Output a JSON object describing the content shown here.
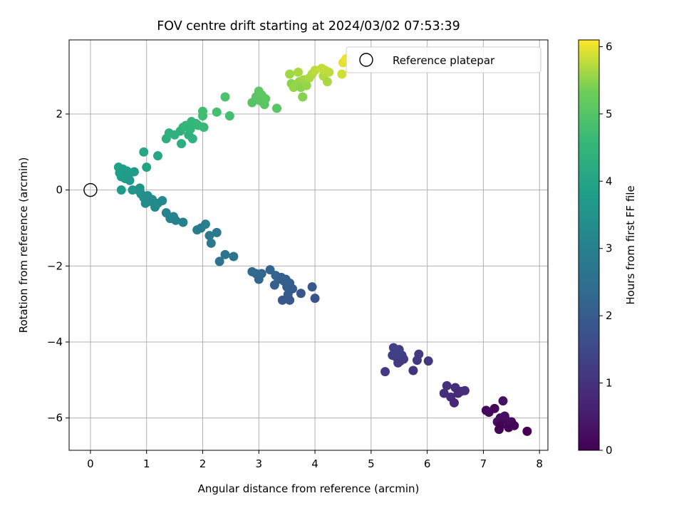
{
  "chart_data": {
    "type": "scatter",
    "title": "FOV centre drift starting at 2024/03/02 07:53:39",
    "xlabel": "Angular distance from reference (arcmin)",
    "ylabel": "Rotation from reference (arcmin)",
    "colorbar_label": "Hours from first FF file",
    "colormap": "viridis",
    "xlim": [
      -0.38,
      8.15
    ],
    "ylim": [
      -6.85,
      3.95
    ],
    "clim": [
      0,
      6.1
    ],
    "x_ticks": [
      0,
      1,
      2,
      3,
      4,
      5,
      6,
      7,
      8
    ],
    "y_ticks": [
      -6,
      -4,
      -2,
      0,
      2
    ],
    "colorbar_ticks": [
      0,
      1,
      2,
      3,
      4,
      5,
      6
    ],
    "grid": true,
    "legend": {
      "placement": "top-right",
      "entries": [
        "Reference platepar"
      ]
    },
    "reference_point": {
      "x": 0,
      "y": 0
    },
    "points": [
      {
        "x": 7.05,
        "y": -5.8,
        "h": 0.15
      },
      {
        "x": 7.1,
        "y": -5.85,
        "h": 0.2
      },
      {
        "x": 7.2,
        "y": -5.75,
        "h": 0.1
      },
      {
        "x": 7.25,
        "y": -6.1,
        "h": 0.25
      },
      {
        "x": 7.3,
        "y": -6.0,
        "h": 0.2
      },
      {
        "x": 7.35,
        "y": -5.55,
        "h": 0.3
      },
      {
        "x": 7.28,
        "y": -6.3,
        "h": 0.1
      },
      {
        "x": 7.4,
        "y": -6.05,
        "h": 0.15
      },
      {
        "x": 7.45,
        "y": -6.25,
        "h": 0.05
      },
      {
        "x": 7.5,
        "y": -6.1,
        "h": 0.2
      },
      {
        "x": 7.55,
        "y": -6.2,
        "h": 0.1
      },
      {
        "x": 7.3,
        "y": -6.2,
        "h": 0.05
      },
      {
        "x": 7.78,
        "y": -6.35,
        "h": 0.0
      },
      {
        "x": 7.38,
        "y": -5.95,
        "h": 0.3
      },
      {
        "x": 6.3,
        "y": -5.35,
        "h": 0.9
      },
      {
        "x": 6.35,
        "y": -5.15,
        "h": 0.95
      },
      {
        "x": 6.42,
        "y": -5.45,
        "h": 0.85
      },
      {
        "x": 6.5,
        "y": -5.2,
        "h": 0.9
      },
      {
        "x": 6.55,
        "y": -5.35,
        "h": 0.8
      },
      {
        "x": 6.48,
        "y": -5.6,
        "h": 0.75
      },
      {
        "x": 6.6,
        "y": -5.3,
        "h": 0.85
      },
      {
        "x": 6.67,
        "y": -5.28,
        "h": 0.9
      },
      {
        "x": 5.25,
        "y": -4.78,
        "h": 1.2
      },
      {
        "x": 5.4,
        "y": -4.15,
        "h": 1.35
      },
      {
        "x": 5.42,
        "y": -4.3,
        "h": 1.3
      },
      {
        "x": 5.45,
        "y": -4.4,
        "h": 1.25
      },
      {
        "x": 5.5,
        "y": -4.2,
        "h": 1.3
      },
      {
        "x": 5.52,
        "y": -4.5,
        "h": 1.2
      },
      {
        "x": 5.55,
        "y": -4.35,
        "h": 1.35
      },
      {
        "x": 5.58,
        "y": -4.45,
        "h": 1.25
      },
      {
        "x": 5.48,
        "y": -4.55,
        "h": 1.15
      },
      {
        "x": 5.75,
        "y": -4.75,
        "h": 1.05
      },
      {
        "x": 5.82,
        "y": -4.48,
        "h": 1.15
      },
      {
        "x": 5.85,
        "y": -4.32,
        "h": 1.2
      },
      {
        "x": 6.02,
        "y": -4.5,
        "h": 1.1
      },
      {
        "x": 5.38,
        "y": -4.35,
        "h": 1.3
      },
      {
        "x": 2.88,
        "y": -2.15,
        "h": 2.35
      },
      {
        "x": 2.95,
        "y": -2.2,
        "h": 2.3
      },
      {
        "x": 3.0,
        "y": -2.35,
        "h": 2.25
      },
      {
        "x": 3.05,
        "y": -2.2,
        "h": 2.3
      },
      {
        "x": 3.2,
        "y": -2.1,
        "h": 2.2
      },
      {
        "x": 3.28,
        "y": -2.5,
        "h": 2.1
      },
      {
        "x": 3.3,
        "y": -2.25,
        "h": 2.2
      },
      {
        "x": 3.35,
        "y": -2.35,
        "h": 2.15
      },
      {
        "x": 3.4,
        "y": -2.3,
        "h": 2.1
      },
      {
        "x": 3.45,
        "y": -2.4,
        "h": 2.05
      },
      {
        "x": 3.5,
        "y": -2.55,
        "h": 2.0
      },
      {
        "x": 3.55,
        "y": -2.45,
        "h": 2.05
      },
      {
        "x": 3.6,
        "y": -2.6,
        "h": 1.95
      },
      {
        "x": 3.42,
        "y": -2.9,
        "h": 1.9
      },
      {
        "x": 3.52,
        "y": -2.75,
        "h": 1.95
      },
      {
        "x": 3.55,
        "y": -2.9,
        "h": 1.9
      },
      {
        "x": 3.75,
        "y": -2.72,
        "h": 1.85
      },
      {
        "x": 3.95,
        "y": -2.55,
        "h": 1.9
      },
      {
        "x": 4.0,
        "y": -2.85,
        "h": 1.8
      },
      {
        "x": 3.48,
        "y": -2.35,
        "h": 2.1
      },
      {
        "x": 1.9,
        "y": -1.05,
        "h": 2.9
      },
      {
        "x": 1.97,
        "y": -1.0,
        "h": 2.85
      },
      {
        "x": 2.05,
        "y": -0.9,
        "h": 2.95
      },
      {
        "x": 2.12,
        "y": -1.2,
        "h": 2.8
      },
      {
        "x": 2.15,
        "y": -1.4,
        "h": 2.75
      },
      {
        "x": 2.25,
        "y": -1.12,
        "h": 2.8
      },
      {
        "x": 2.3,
        "y": -1.88,
        "h": 2.6
      },
      {
        "x": 2.4,
        "y": -1.7,
        "h": 2.65
      },
      {
        "x": 2.55,
        "y": -1.75,
        "h": 2.6
      },
      {
        "x": 1.35,
        "y": -0.6,
        "h": 3.1
      },
      {
        "x": 1.42,
        "y": -0.75,
        "h": 3.05
      },
      {
        "x": 1.48,
        "y": -0.7,
        "h": 3.1
      },
      {
        "x": 1.52,
        "y": -0.8,
        "h": 3.0
      },
      {
        "x": 1.65,
        "y": -0.85,
        "h": 3.0
      },
      {
        "x": 0.85,
        "y": 0.0,
        "h": 3.5
      },
      {
        "x": 0.9,
        "y": -0.1,
        "h": 3.45
      },
      {
        "x": 0.95,
        "y": -0.2,
        "h": 3.4
      },
      {
        "x": 0.98,
        "y": -0.35,
        "h": 3.35
      },
      {
        "x": 1.02,
        "y": -0.15,
        "h": 3.4
      },
      {
        "x": 1.05,
        "y": -0.3,
        "h": 3.35
      },
      {
        "x": 1.1,
        "y": -0.25,
        "h": 3.3
      },
      {
        "x": 1.15,
        "y": -0.45,
        "h": 3.25
      },
      {
        "x": 1.2,
        "y": -0.35,
        "h": 3.3
      },
      {
        "x": 1.28,
        "y": -0.28,
        "h": 3.25
      },
      {
        "x": 0.75,
        "y": 0.0,
        "h": 3.6
      },
      {
        "x": 0.88,
        "y": 0.05,
        "h": 3.5
      },
      {
        "x": 0.5,
        "y": 0.6,
        "h": 3.9
      },
      {
        "x": 0.52,
        "y": 0.45,
        "h": 3.85
      },
      {
        "x": 0.55,
        "y": 0.35,
        "h": 3.8
      },
      {
        "x": 0.58,
        "y": 0.55,
        "h": 3.85
      },
      {
        "x": 0.62,
        "y": 0.3,
        "h": 3.75
      },
      {
        "x": 0.65,
        "y": 0.5,
        "h": 3.8
      },
      {
        "x": 0.68,
        "y": 0.4,
        "h": 3.75
      },
      {
        "x": 0.7,
        "y": 0.25,
        "h": 3.7
      },
      {
        "x": 0.78,
        "y": 0.48,
        "h": 3.7
      },
      {
        "x": 0.55,
        "y": 0.0,
        "h": 3.7
      },
      {
        "x": 0.95,
        "y": 1.0,
        "h": 4.05
      },
      {
        "x": 1.0,
        "y": 0.6,
        "h": 3.95
      },
      {
        "x": 1.2,
        "y": 0.9,
        "h": 4.05
      },
      {
        "x": 1.35,
        "y": 1.35,
        "h": 4.3
      },
      {
        "x": 1.4,
        "y": 1.5,
        "h": 4.35
      },
      {
        "x": 1.5,
        "y": 1.45,
        "h": 4.35
      },
      {
        "x": 1.6,
        "y": 1.55,
        "h": 4.4
      },
      {
        "x": 1.62,
        "y": 1.22,
        "h": 4.3
      },
      {
        "x": 1.65,
        "y": 1.65,
        "h": 4.45
      },
      {
        "x": 1.7,
        "y": 1.7,
        "h": 4.5
      },
      {
        "x": 1.75,
        "y": 1.45,
        "h": 4.4
      },
      {
        "x": 1.78,
        "y": 1.6,
        "h": 4.45
      },
      {
        "x": 1.8,
        "y": 1.8,
        "h": 4.55
      },
      {
        "x": 1.82,
        "y": 1.35,
        "h": 4.4
      },
      {
        "x": 1.88,
        "y": 1.75,
        "h": 4.55
      },
      {
        "x": 1.92,
        "y": 1.7,
        "h": 4.6
      },
      {
        "x": 2.0,
        "y": 1.95,
        "h": 4.7
      },
      {
        "x": 2.0,
        "y": 2.07,
        "h": 4.75
      },
      {
        "x": 2.02,
        "y": 1.65,
        "h": 4.6
      },
      {
        "x": 2.25,
        "y": 2.05,
        "h": 4.8
      },
      {
        "x": 2.4,
        "y": 2.45,
        "h": 4.9
      },
      {
        "x": 2.48,
        "y": 1.95,
        "h": 4.8
      },
      {
        "x": 2.88,
        "y": 2.3,
        "h": 5.0
      },
      {
        "x": 2.95,
        "y": 2.45,
        "h": 5.05
      },
      {
        "x": 3.0,
        "y": 2.6,
        "h": 5.1
      },
      {
        "x": 3.02,
        "y": 2.35,
        "h": 5.05
      },
      {
        "x": 3.05,
        "y": 2.5,
        "h": 5.1
      },
      {
        "x": 3.1,
        "y": 2.25,
        "h": 5.05
      },
      {
        "x": 3.12,
        "y": 2.4,
        "h": 5.1
      },
      {
        "x": 3.32,
        "y": 2.15,
        "h": 5.05
      },
      {
        "x": 3.55,
        "y": 3.05,
        "h": 5.6
      },
      {
        "x": 3.58,
        "y": 2.8,
        "h": 5.5
      },
      {
        "x": 3.62,
        "y": 2.7,
        "h": 5.55
      },
      {
        "x": 3.7,
        "y": 3.1,
        "h": 5.65
      },
      {
        "x": 3.72,
        "y": 2.85,
        "h": 5.55
      },
      {
        "x": 3.75,
        "y": 2.7,
        "h": 5.5
      },
      {
        "x": 3.78,
        "y": 2.45,
        "h": 5.45
      },
      {
        "x": 3.8,
        "y": 2.9,
        "h": 5.6
      },
      {
        "x": 3.85,
        "y": 2.75,
        "h": 5.55
      },
      {
        "x": 3.9,
        "y": 2.95,
        "h": 5.65
      },
      {
        "x": 3.95,
        "y": 3.05,
        "h": 5.7
      },
      {
        "x": 4.0,
        "y": 3.15,
        "h": 5.75
      },
      {
        "x": 4.12,
        "y": 3.2,
        "h": 5.8
      },
      {
        "x": 4.15,
        "y": 3.0,
        "h": 5.7
      },
      {
        "x": 4.18,
        "y": 3.15,
        "h": 5.8
      },
      {
        "x": 4.22,
        "y": 2.85,
        "h": 5.65
      },
      {
        "x": 4.25,
        "y": 3.1,
        "h": 5.75
      },
      {
        "x": 4.48,
        "y": 3.05,
        "h": 5.85
      },
      {
        "x": 4.5,
        "y": 3.35,
        "h": 5.95
      },
      {
        "x": 4.55,
        "y": 3.45,
        "h": 6.0
      }
    ]
  }
}
